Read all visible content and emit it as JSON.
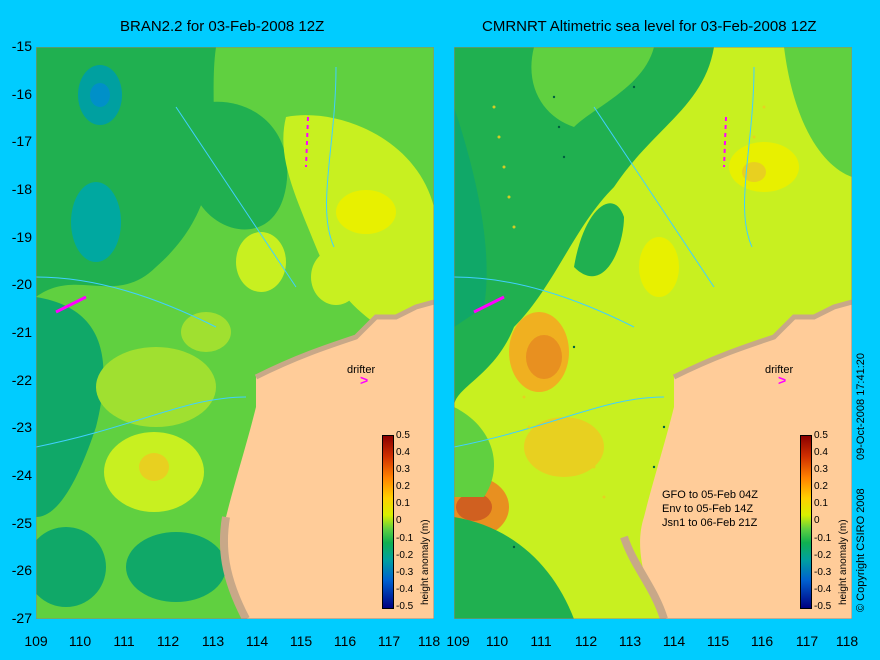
{
  "left_panel": {
    "title": "BRAN2.2 for 03-Feb-2008 12Z",
    "drifter_label": "drifter"
  },
  "right_panel": {
    "title": "CMRNRT Altimetric sea level  for 03-Feb-2008 12Z",
    "drifter_label": "drifter",
    "legend": [
      "GFO to 05-Feb 04Z",
      "Env to 05-Feb 14Z",
      "Jsn1 to 06-Feb 21Z"
    ]
  },
  "y_ticks": [
    "-15",
    "-16",
    "-17",
    "-18",
    "-19",
    "-20",
    "-21",
    "-22",
    "-23",
    "-24",
    "-25",
    "-26",
    "-27"
  ],
  "x_ticks_left": [
    "109",
    "110",
    "111",
    "112",
    "113",
    "114",
    "115",
    "116",
    "117",
    "118"
  ],
  "x_ticks_right": [
    "109",
    "110",
    "111",
    "112",
    "113",
    "114",
    "115",
    "116",
    "117",
    "118"
  ],
  "colorbar": {
    "label": "height anomaly (m)",
    "ticks": [
      "0.5",
      "0.4",
      "0.3",
      "0.2",
      "0.1",
      "0",
      "-0.1",
      "-0.2",
      "-0.3",
      "-0.4",
      "-0.5"
    ]
  },
  "side_text": {
    "copyright": "© Copyright CSIRO 2008",
    "timestamp": "09-Oct-2008 17:41:20"
  },
  "colors": {
    "background": "#00ccff",
    "land": "#ffcc99",
    "coast": "#c8a888",
    "drifter_track": "#ff00ff",
    "contour": "#40d0ff"
  }
}
